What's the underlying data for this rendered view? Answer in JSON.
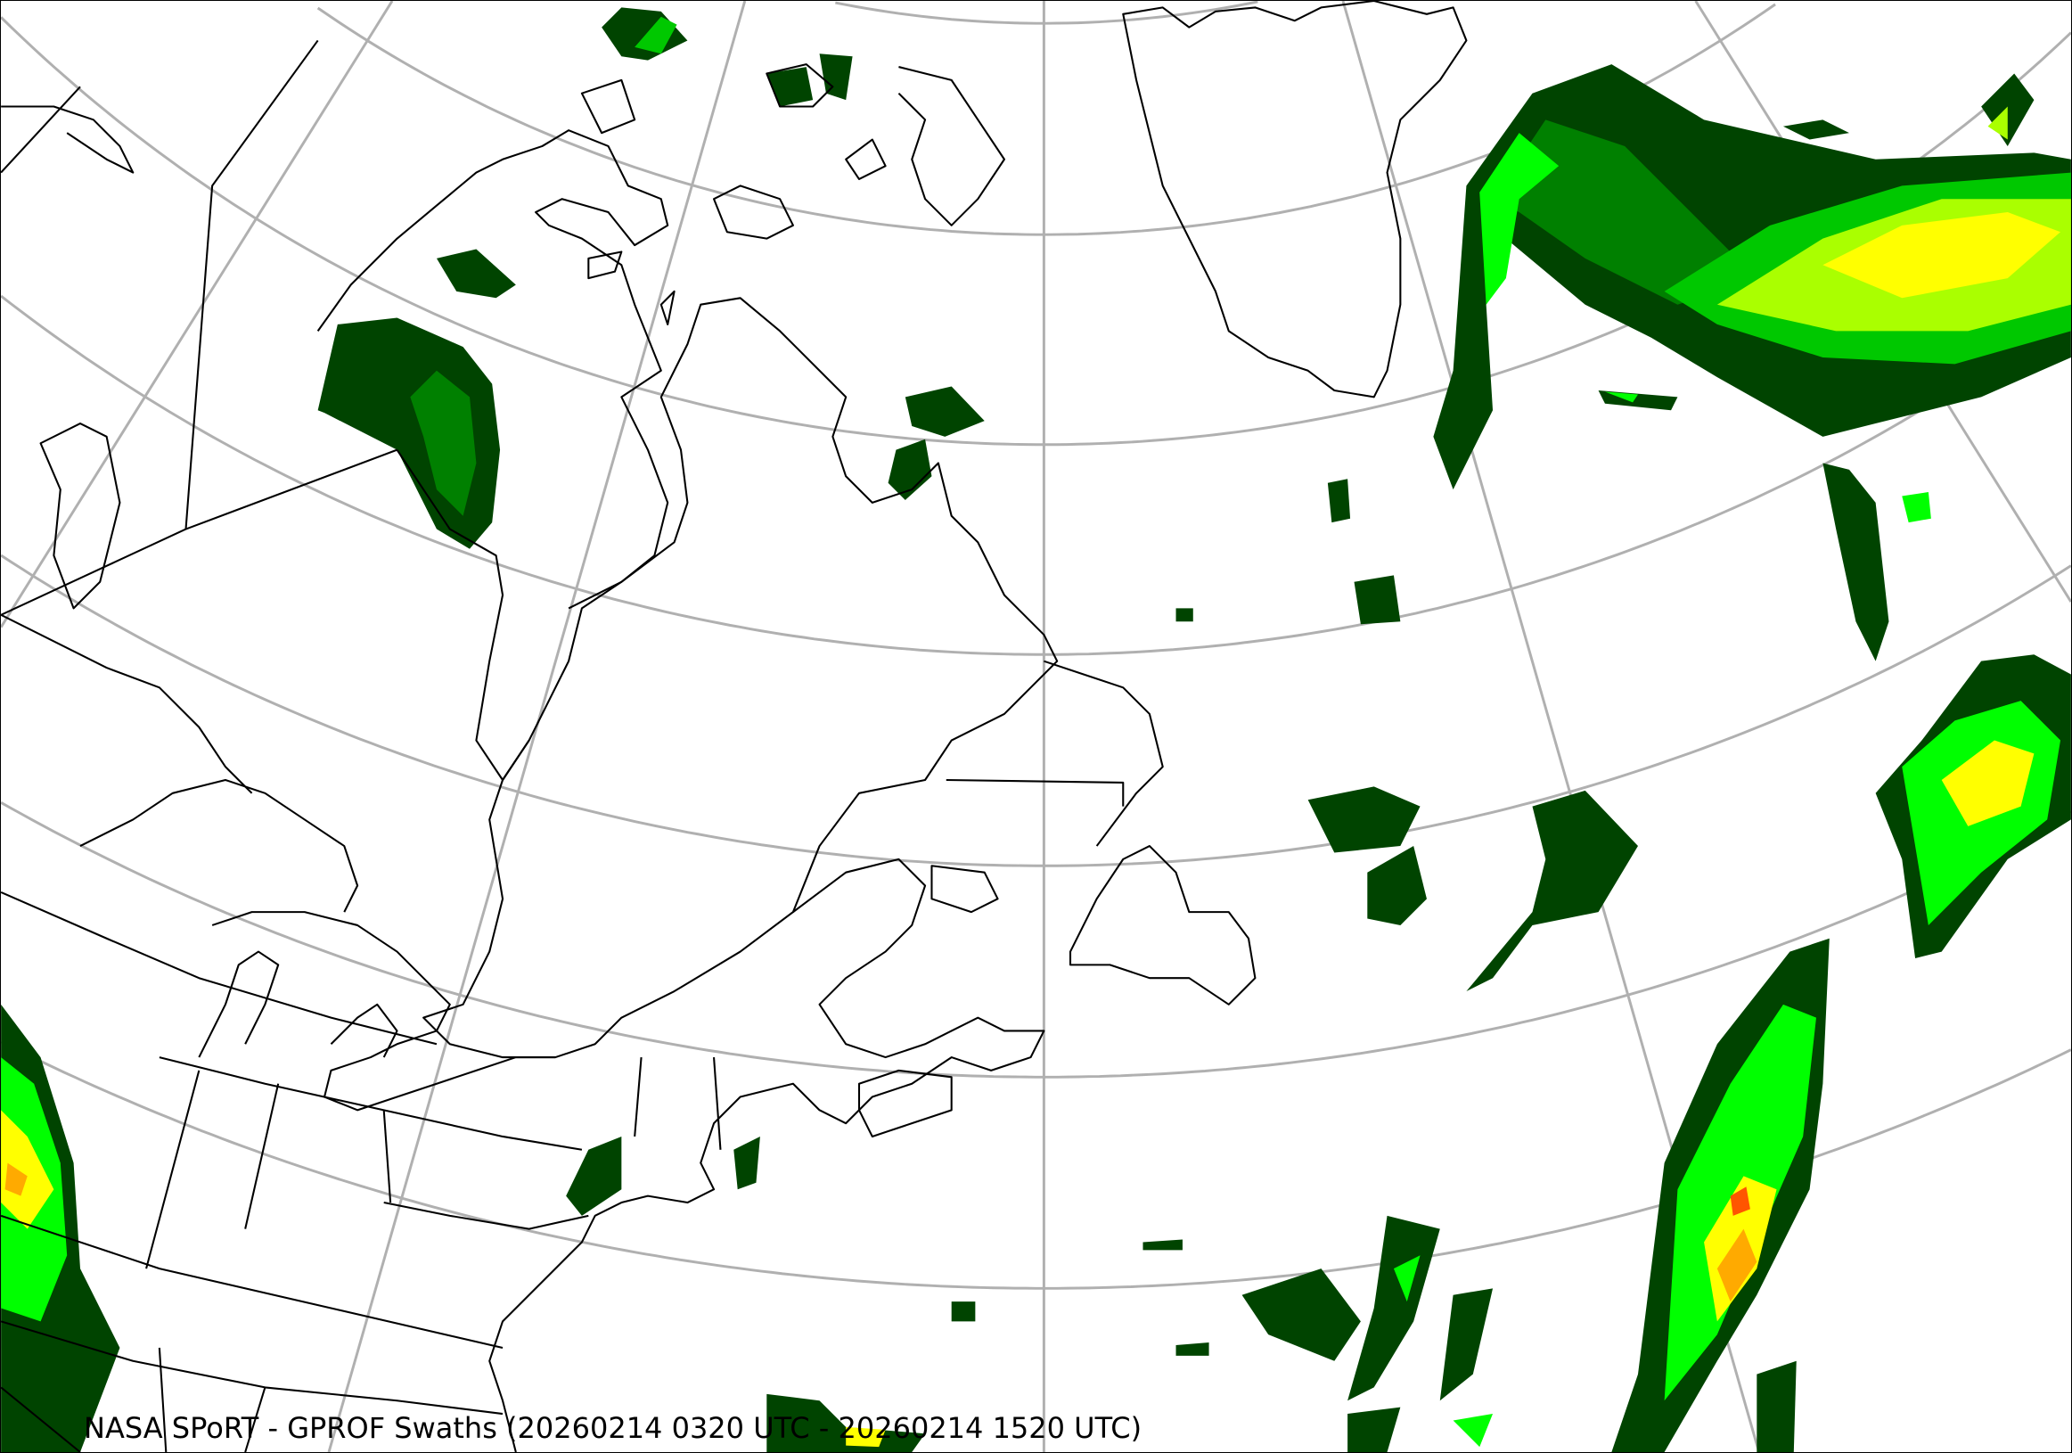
{
  "title": "NASA SPoRT - GPROF Swaths (20260214 0320 UTC - 20260214 1520 UTC)",
  "map": {
    "projection": "lambert-conformal",
    "region": "northeastern North America and North Atlantic",
    "graticule_color": "#b0b0b0",
    "coastline_color": "#000000",
    "precip_colors": [
      "#004400",
      "#008000",
      "#00c800",
      "#00ff00",
      "#aaff00",
      "#ffff00",
      "#ffaa00",
      "#ff5500"
    ]
  }
}
